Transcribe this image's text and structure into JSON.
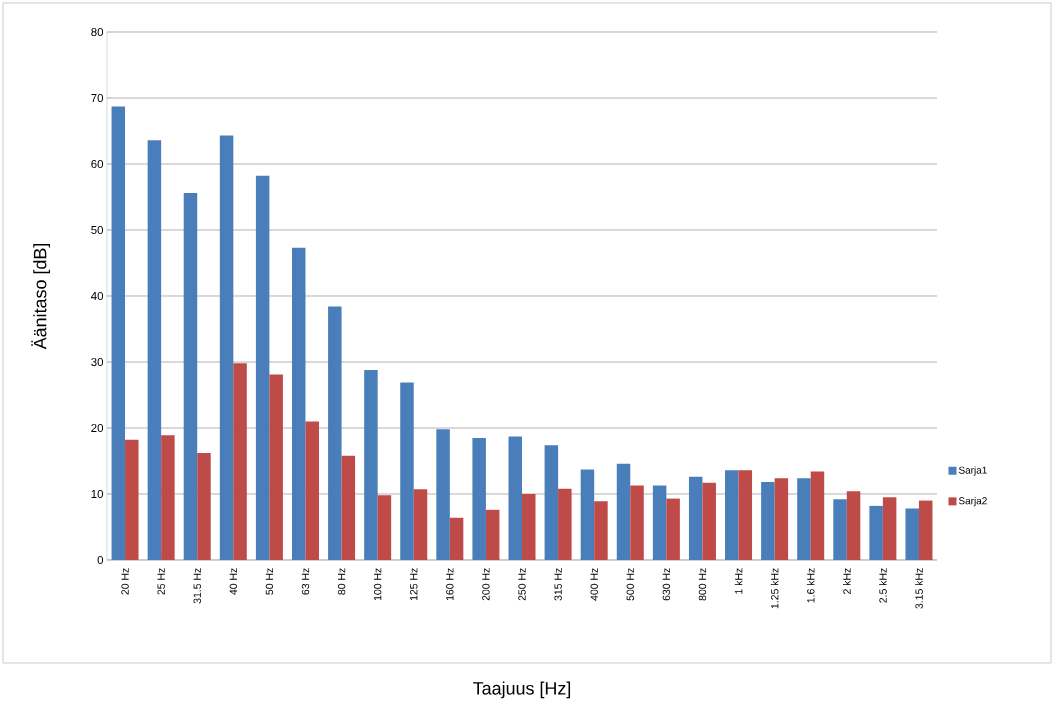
{
  "chart_data": {
    "type": "bar",
    "xlabel": "Taajuus [Hz]",
    "ylabel": "Äänitaso [dB]",
    "categories": [
      "20 Hz",
      "25 Hz",
      "31.5 Hz",
      "40 Hz",
      "50 Hz",
      "63 Hz",
      "80 Hz",
      "100 Hz",
      "125 Hz",
      "160 Hz",
      "200 Hz",
      "250 Hz",
      "315 Hz",
      "400 Hz",
      "500 Hz",
      "630 Hz",
      "800 Hz",
      "1 kHz",
      "1.25 kHz",
      "1.6 kHz",
      "2 kHz",
      "2.5 kHz",
      "3.15 kHz"
    ],
    "series": [
      {
        "name": "Sarja1",
        "color": "#4a7ebb",
        "values": [
          68.7,
          63.6,
          55.6,
          64.3,
          58.2,
          47.3,
          38.4,
          28.8,
          26.9,
          19.8,
          18.5,
          18.7,
          17.4,
          13.7,
          14.6,
          11.3,
          12.6,
          13.6,
          11.8,
          12.4,
          9.2,
          8.2,
          7.8
        ]
      },
      {
        "name": "Sarja2",
        "color": "#be4b48",
        "values": [
          18.2,
          18.9,
          16.2,
          29.8,
          28.1,
          21.0,
          15.8,
          9.8,
          10.7,
          6.4,
          7.6,
          10.0,
          10.8,
          8.9,
          11.3,
          9.3,
          11.7,
          13.6,
          12.4,
          13.4,
          10.4,
          9.5,
          9.0
        ]
      }
    ],
    "ylim": [
      0,
      80
    ],
    "yticks": [
      0,
      10,
      20,
      30,
      40,
      50,
      60,
      70,
      80
    ],
    "grid": "y",
    "legend": "right"
  }
}
